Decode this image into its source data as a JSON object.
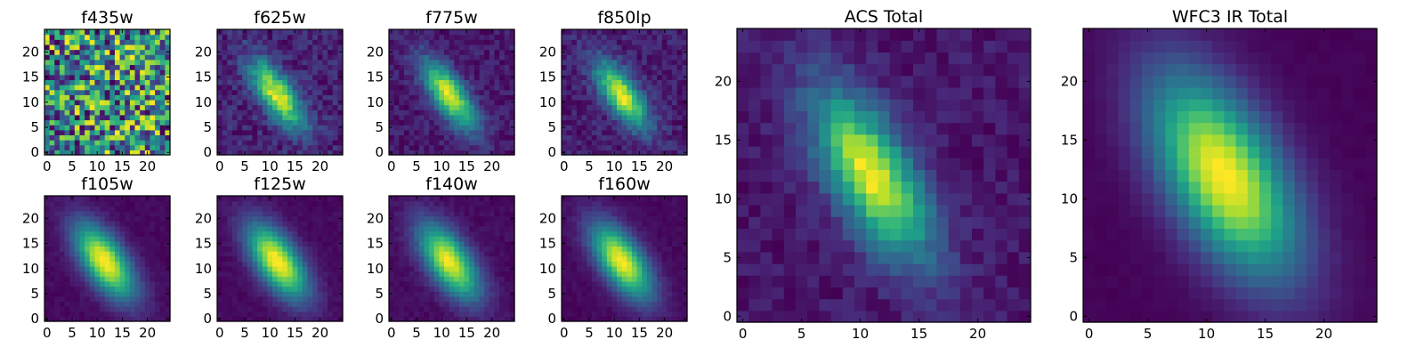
{
  "chart_data": [
    {
      "type": "heatmap",
      "title": "f435w",
      "colormap": "viridis",
      "grid": false,
      "xlim": [
        0,
        25
      ],
      "ylim": [
        0,
        25
      ],
      "xticks": [
        0,
        5,
        10,
        15,
        20
      ],
      "yticks": [
        0,
        5,
        10,
        15,
        20
      ],
      "image_size": [
        25,
        25
      ],
      "source": {
        "center": [
          12,
          12
        ],
        "sigma_major": 0,
        "sigma_minor": 0,
        "angle_deg": 0,
        "noise": 1.0
      }
    },
    {
      "type": "heatmap",
      "title": "f625w",
      "colormap": "viridis",
      "grid": false,
      "xlim": [
        0,
        25
      ],
      "ylim": [
        0,
        25
      ],
      "xticks": [
        0,
        5,
        10,
        15,
        20
      ],
      "yticks": [
        0,
        5,
        10,
        15,
        20
      ],
      "image_size": [
        25,
        25
      ],
      "source": {
        "center": [
          11.5,
          11.5
        ],
        "sigma_major": 5.5,
        "sigma_minor": 2.2,
        "angle_deg": -55,
        "noise": 0.35
      }
    },
    {
      "type": "heatmap",
      "title": "f775w",
      "colormap": "viridis",
      "grid": false,
      "xlim": [
        0,
        25
      ],
      "ylim": [
        0,
        25
      ],
      "xticks": [
        0,
        5,
        10,
        15,
        20
      ],
      "yticks": [
        0,
        5,
        10,
        15,
        20
      ],
      "image_size": [
        25,
        25
      ],
      "source": {
        "center": [
          11.5,
          11.5
        ],
        "sigma_major": 5.5,
        "sigma_minor": 2.2,
        "angle_deg": -55,
        "noise": 0.25
      }
    },
    {
      "type": "heatmap",
      "title": "f850lp",
      "colormap": "viridis",
      "grid": false,
      "xlim": [
        0,
        25
      ],
      "ylim": [
        0,
        25
      ],
      "xticks": [
        0,
        5,
        10,
        15,
        20
      ],
      "yticks": [
        0,
        5,
        10,
        15,
        20
      ],
      "image_size": [
        25,
        25
      ],
      "source": {
        "center": [
          11.5,
          11.5
        ],
        "sigma_major": 5.5,
        "sigma_minor": 2.2,
        "angle_deg": -55,
        "noise": 0.3
      }
    },
    {
      "type": "heatmap",
      "title": "f105w",
      "colormap": "viridis",
      "grid": false,
      "xlim": [
        0,
        25
      ],
      "ylim": [
        0,
        25
      ],
      "xticks": [
        0,
        5,
        10,
        15,
        20
      ],
      "yticks": [
        0,
        5,
        10,
        15,
        20
      ],
      "image_size": [
        25,
        25
      ],
      "source": {
        "center": [
          11.5,
          11.5
        ],
        "sigma_major": 6.0,
        "sigma_minor": 2.8,
        "angle_deg": -55,
        "noise": 0.08
      }
    },
    {
      "type": "heatmap",
      "title": "f125w",
      "colormap": "viridis",
      "grid": false,
      "xlim": [
        0,
        25
      ],
      "ylim": [
        0,
        25
      ],
      "xticks": [
        0,
        5,
        10,
        15,
        20
      ],
      "yticks": [
        0,
        5,
        10,
        15,
        20
      ],
      "image_size": [
        25,
        25
      ],
      "source": {
        "center": [
          11.5,
          11.5
        ],
        "sigma_major": 6.0,
        "sigma_minor": 2.8,
        "angle_deg": -55,
        "noise": 0.08
      }
    },
    {
      "type": "heatmap",
      "title": "f140w",
      "colormap": "viridis",
      "grid": false,
      "xlim": [
        0,
        25
      ],
      "ylim": [
        0,
        25
      ],
      "xticks": [
        0,
        5,
        10,
        15,
        20
      ],
      "yticks": [
        0,
        5,
        10,
        15,
        20
      ],
      "image_size": [
        25,
        25
      ],
      "source": {
        "center": [
          11.5,
          11.5
        ],
        "sigma_major": 6.0,
        "sigma_minor": 2.8,
        "angle_deg": -55,
        "noise": 0.1
      }
    },
    {
      "type": "heatmap",
      "title": "f160w",
      "colormap": "viridis",
      "grid": false,
      "xlim": [
        0,
        25
      ],
      "ylim": [
        0,
        25
      ],
      "xticks": [
        0,
        5,
        10,
        15,
        20
      ],
      "yticks": [
        0,
        5,
        10,
        15,
        20
      ],
      "image_size": [
        25,
        25
      ],
      "source": {
        "center": [
          11.5,
          11.5
        ],
        "sigma_major": 6.0,
        "sigma_minor": 2.8,
        "angle_deg": -55,
        "noise": 0.08
      }
    },
    {
      "type": "heatmap",
      "title": "ACS Total",
      "colormap": "viridis",
      "grid": false,
      "xlim": [
        0,
        25
      ],
      "ylim": [
        0,
        25
      ],
      "xticks": [
        0,
        5,
        10,
        15,
        20
      ],
      "yticks": [
        0,
        5,
        10,
        15,
        20
      ],
      "image_size": [
        25,
        25
      ],
      "source": {
        "center": [
          11,
          12
        ],
        "sigma_major": 5.5,
        "sigma_minor": 2.3,
        "angle_deg": -60,
        "noise": 0.2
      }
    },
    {
      "type": "heatmap",
      "title": "WFC3 IR Total",
      "colormap": "viridis",
      "grid": false,
      "xlim": [
        0,
        25
      ],
      "ylim": [
        0,
        25
      ],
      "xticks": [
        0,
        5,
        10,
        15,
        20
      ],
      "yticks": [
        0,
        5,
        10,
        15,
        20
      ],
      "image_size": [
        25,
        25
      ],
      "source": {
        "center": [
          11.5,
          12
        ],
        "sigma_major": 6.5,
        "sigma_minor": 3.2,
        "angle_deg": -60,
        "noise": 0.03
      }
    }
  ],
  "colors": {
    "low": "#440154",
    "mid": "#21918c",
    "high": "#fde725",
    "axis": "#000000",
    "background": "#ffffff"
  }
}
